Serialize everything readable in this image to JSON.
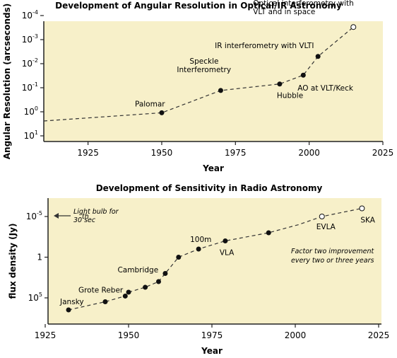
{
  "colors": {
    "plot_bg": "#f7f0c9",
    "axis": "#222222",
    "line": "#333333",
    "marker": "#111111"
  },
  "chart_data": [
    {
      "type": "line",
      "title": "Development of Angular Resolution in Optical/IR Astronomy",
      "xlabel": "Year",
      "ylabel": "Angular Resolution (arcseconds)",
      "xlim": [
        1910,
        2025
      ],
      "x_ticks": [
        1925,
        1950,
        1975,
        2000,
        2025
      ],
      "y_scale": "log-inverted",
      "ylim": [
        10,
        0.0001
      ],
      "y_ticks": [
        {
          "value": 0.0001,
          "base": "10",
          "exp": "-4"
        },
        {
          "value": 0.001,
          "base": "10",
          "exp": "-3"
        },
        {
          "value": 0.01,
          "base": "10",
          "exp": "-2"
        },
        {
          "value": 0.1,
          "base": "10",
          "exp": "-1"
        },
        {
          "value": 1,
          "base": "10",
          "exp": "0"
        },
        {
          "value": 10,
          "base": "10",
          "exp": "1"
        }
      ],
      "grid": false,
      "baseline": {
        "x": [
          1910,
          1950
        ],
        "y": 1.3
      },
      "points": [
        {
          "x": 1950,
          "y": 1.1,
          "marker": "filled"
        },
        {
          "x": 1970,
          "y": 0.13,
          "marker": "filled"
        },
        {
          "x": 1990,
          "y": 0.07,
          "marker": "filled"
        },
        {
          "x": 1998,
          "y": 0.03,
          "marker": "filled"
        },
        {
          "x": 2003,
          "y": 0.005,
          "marker": "filled"
        },
        {
          "x": 2015,
          "y": 0.0003,
          "marker": "open"
        }
      ],
      "annotations": [
        {
          "lines": [
            "Palomar"
          ],
          "x": 1950,
          "y": 1.1
        },
        {
          "lines": [
            "Speckle",
            "Interferometry"
          ],
          "x": 1970,
          "y": 0.13
        },
        {
          "lines": [
            "Hubble"
          ],
          "x": 1990,
          "y": 0.07
        },
        {
          "lines": [
            "AO at VLT/Keck"
          ],
          "x": 1998,
          "y": 0.03
        },
        {
          "lines": [
            "IR interferometry with VLTI"
          ],
          "x": 2003,
          "y": 0.005
        },
        {
          "lines": [
            "Optical interferometry with",
            "VLT and in space"
          ],
          "x": 2015,
          "y": 0.0003
        }
      ]
    },
    {
      "type": "line",
      "title": "Development of Sensitivity in Radio Astronomy",
      "xlabel": "Year",
      "ylabel": "flux density (Jy)",
      "xlim": [
        1925,
        2025
      ],
      "x_ticks": [
        1925,
        1950,
        1975,
        2000,
        2025
      ],
      "y_scale": "log-inverted",
      "y_ticks": [
        {
          "value": 1e-05,
          "base": "10",
          "exp": "-5"
        },
        {
          "value": 1,
          "base": "1",
          "exp": ""
        },
        {
          "value": 100000,
          "base": "10",
          "exp": "5"
        }
      ],
      "grid": false,
      "points": [
        {
          "x": 1932,
          "y": 3000000,
          "marker": "filled"
        },
        {
          "x": 1943,
          "y": 300000,
          "marker": "filled"
        },
        {
          "x": 1949,
          "y": 60000,
          "marker": "filled"
        },
        {
          "x": 1950,
          "y": 20000,
          "marker": "filled"
        },
        {
          "x": 1955,
          "y": 5000,
          "marker": "filled"
        },
        {
          "x": 1959,
          "y": 1000,
          "marker": "filled"
        },
        {
          "x": 1961,
          "y": 100,
          "marker": "filled"
        },
        {
          "x": 1965,
          "y": 1,
          "marker": "filled"
        },
        {
          "x": 1971,
          "y": 0.1,
          "marker": "filled"
        },
        {
          "x": 1979,
          "y": 0.01,
          "marker": "filled"
        },
        {
          "x": 1992,
          "y": 0.001,
          "marker": "filled"
        },
        {
          "x": 2001,
          "y": 0.0001,
          "marker": "none"
        },
        {
          "x": 2008,
          "y": 1e-05,
          "marker": "open"
        },
        {
          "x": 2020,
          "y": 1e-06,
          "marker": "open"
        }
      ],
      "annotations": [
        {
          "lines": [
            "Jansky"
          ],
          "x": 1932,
          "y": 3000000
        },
        {
          "lines": [
            "Grote Reber"
          ],
          "x": 1943,
          "y": 300000
        },
        {
          "lines": [
            "Cambridge"
          ],
          "x": 1959,
          "y": 1000
        },
        {
          "lines": [
            "100m"
          ],
          "x": 1971,
          "y": 0.1
        },
        {
          "lines": [
            "VLA"
          ],
          "x": 1979,
          "y": 0.01
        },
        {
          "lines": [
            "EVLA"
          ],
          "x": 2008,
          "y": 1e-05
        },
        {
          "lines": [
            "SKA"
          ],
          "x": 2020,
          "y": 1e-06
        }
      ],
      "side_notes": [
        {
          "lines": [
            "Light bulb for",
            "30 sec"
          ],
          "superscript": "th",
          "arrow": "left"
        },
        {
          "lines": [
            "Factor two improvement",
            "every two or three years"
          ]
        }
      ]
    }
  ]
}
